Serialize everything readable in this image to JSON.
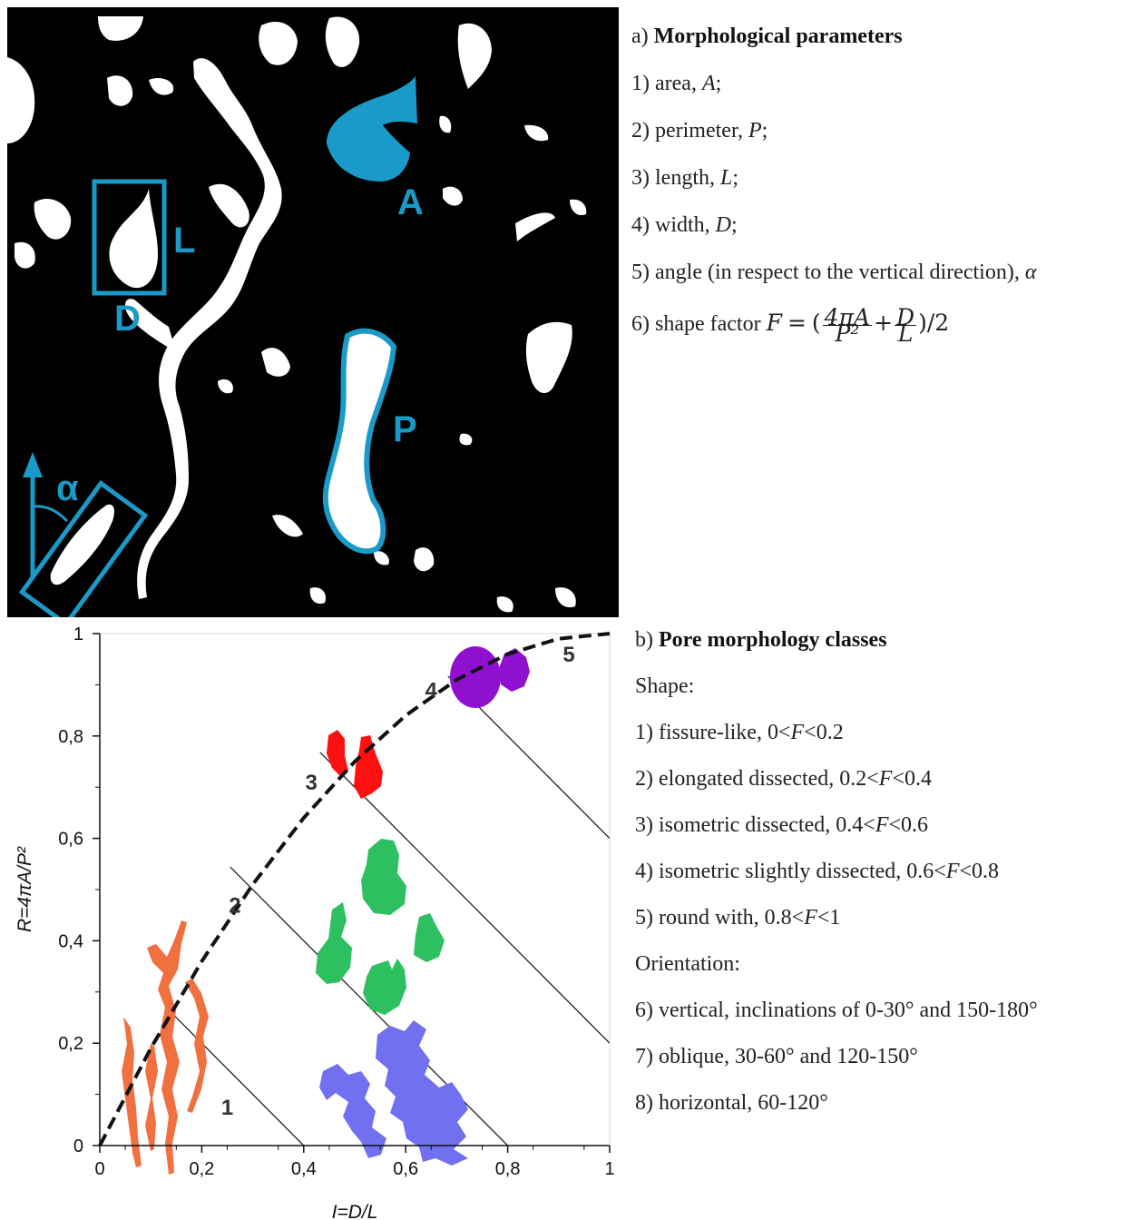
{
  "panel_a": {
    "labels": {
      "area": "A",
      "length": "L",
      "width": "D",
      "perimeter": "P",
      "angle": "α"
    },
    "colors": {
      "background": "#000000",
      "pore": "#ffffff",
      "highlight": "#1a9ac8"
    },
    "text": {
      "heading_prefix": "a)",
      "heading": "Morphological parameters",
      "items": [
        {
          "prefix": "1) area, ",
          "symbol": "A",
          "suffix": ";"
        },
        {
          "prefix": "2) perimeter, ",
          "symbol": "P",
          "suffix": ";"
        },
        {
          "prefix": "3) length, ",
          "symbol": "L",
          "suffix": ";"
        },
        {
          "prefix": "4) width, ",
          "symbol": "D",
          "suffix": ";"
        },
        {
          "prefix": "5) angle (in respect to the vertical direction), ",
          "symbol": "α",
          "suffix": ""
        }
      ],
      "formula": {
        "prefix": "6) shape factor ",
        "lhs": "F",
        "eq": "=",
        "open": "(",
        "frac1_num": "4πA",
        "frac1_den": "P²",
        "plus": "+",
        "frac2_num": "D",
        "frac2_den": "L",
        "close": ")/2"
      }
    }
  },
  "panel_b": {
    "text": {
      "heading_prefix": "b)",
      "heading": "Pore morphology classes",
      "shape_label": "Shape:",
      "shape_items": [
        {
          "prefix": "1) fissure-like, 0<",
          "symbol": "F",
          "suffix": "<0.2"
        },
        {
          "prefix": "2) elongated dissected, 0.2<",
          "symbol": "F",
          "suffix": "<0.4"
        },
        {
          "prefix": "3) isometric dissected, 0.4<",
          "symbol": "F",
          "suffix": "<0.6"
        },
        {
          "prefix": "4) isometric slightly dissected, 0.6<",
          "symbol": "F",
          "suffix": "<0.8"
        },
        {
          "prefix": "5) round with, 0.8<",
          "symbol": "F",
          "suffix": "<1"
        }
      ],
      "orientation_label": "Orientation:",
      "orientation_items": [
        "6) vertical, inclinations of 0-30° and 150-180°",
        "7) oblique, 30-60° and 120-150°",
        "8) horizontal, 60-120°"
      ]
    }
  },
  "chart_data": {
    "type": "line",
    "xlabel": "I=D/L",
    "ylabel": "R=4πA/P²",
    "xlim": [
      0,
      1
    ],
    "ylim": [
      0,
      1
    ],
    "x_tick_labels": [
      "0",
      "0,2",
      "0,4",
      "0,6",
      "0,8",
      "1"
    ],
    "y_tick_labels": [
      "0",
      "0,2",
      "0,4",
      "0,6",
      "0,8",
      "1"
    ],
    "x_ticks": [
      0,
      0.2,
      0.4,
      0.6,
      0.8,
      1
    ],
    "y_ticks": [
      0,
      0.2,
      0.4,
      0.6,
      0.8,
      1
    ],
    "grid": false,
    "envelope": {
      "style": "dashed",
      "x": [
        0,
        0.1,
        0.2,
        0.3,
        0.4,
        0.5,
        0.6,
        0.7,
        0.8,
        0.9,
        1
      ],
      "y": [
        0,
        0.19,
        0.36,
        0.51,
        0.64,
        0.75,
        0.84,
        0.91,
        0.96,
        0.99,
        1
      ]
    },
    "class_boundaries": [
      {
        "F": 0.2,
        "x1": 0.129,
        "y1": 0.271,
        "x2": 0.4,
        "y2": 0
      },
      {
        "F": 0.4,
        "x1": 0.256,
        "y1": 0.544,
        "x2": 0.8,
        "y2": 0
      },
      {
        "F": 0.6,
        "x1": 0.432,
        "y1": 0.768,
        "x2": 1,
        "y2": 0.2
      },
      {
        "F": 0.8,
        "x1": 0.683,
        "y1": 0.917,
        "x2": 1,
        "y2": 0.6
      }
    ],
    "class_labels": [
      {
        "text": "1",
        "x": 0.25,
        "y": 0.06
      },
      {
        "text": "2",
        "x": 0.265,
        "y": 0.455
      },
      {
        "text": "3",
        "x": 0.415,
        "y": 0.695
      },
      {
        "text": "4",
        "x": 0.65,
        "y": 0.875
      },
      {
        "text": "5",
        "x": 0.92,
        "y": 0.945
      }
    ],
    "pore_colors": {
      "class1": "#f07040",
      "class2": "#7070f0",
      "class3": "#ff1010",
      "class4": "#2ec060",
      "class5": "#9010d0"
    }
  }
}
